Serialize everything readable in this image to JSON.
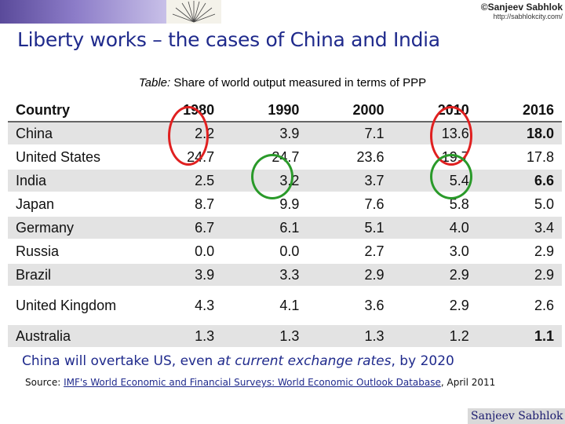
{
  "header": {
    "brand_name": "©Sanjeev Sabhlok",
    "brand_url": "http://sabhlokcity.com/"
  },
  "slide": {
    "title": "Liberty works – the cases of China and India",
    "caption_prefix": "Table:",
    "caption_text": " Share of world output measured in terms of PPP"
  },
  "table": {
    "headers": [
      "Country",
      "1980",
      "1990",
      "2000",
      "2010",
      "2016"
    ],
    "rows": [
      {
        "country": "China",
        "values": [
          "2.2",
          "3.9",
          "7.1",
          "13.6",
          "18.0"
        ]
      },
      {
        "country": "United States",
        "values": [
          "24.7",
          "24.7",
          "23.6",
          "19.7",
          "17.8"
        ]
      },
      {
        "country": "India",
        "values": [
          "2.5",
          "3.2",
          "3.7",
          "5.4",
          "6.6"
        ]
      },
      {
        "country": "Japan",
        "values": [
          "8.7",
          "9.9",
          "7.6",
          "5.8",
          "5.0"
        ]
      },
      {
        "country": "Germany",
        "values": [
          "6.7",
          "6.1",
          "5.1",
          "4.0",
          "3.4"
        ]
      },
      {
        "country": "Russia",
        "values": [
          "0.0",
          "0.0",
          "2.7",
          "3.0",
          "2.9"
        ]
      },
      {
        "country": "Brazil",
        "values": [
          "3.9",
          "3.3",
          "2.9",
          "2.9",
          "2.9"
        ]
      },
      {
        "country": "United Kingdom",
        "values": [
          "4.3",
          "4.1",
          "3.6",
          "2.9",
          "2.6"
        ]
      },
      {
        "country": "Australia",
        "values": [
          "1.3",
          "1.3",
          "1.3",
          "1.2",
          "1.1"
        ]
      }
    ],
    "bold_last_column_rows": [
      "China",
      "India",
      "Australia"
    ],
    "annotation_colors": {
      "china": "#e02020",
      "india": "#2a9a2a"
    }
  },
  "footer": {
    "conclusion_part1": "China will overtake US, even ",
    "conclusion_emphasis": "at current exchange rates",
    "conclusion_part2": ", by 2020",
    "source_label": "Source: ",
    "source_link": "IMF's World Economic and Financial Surveys: World Economic Outlook Database",
    "source_suffix": ", April 2011",
    "logo_text": "Sanjeev Sabhlok"
  }
}
